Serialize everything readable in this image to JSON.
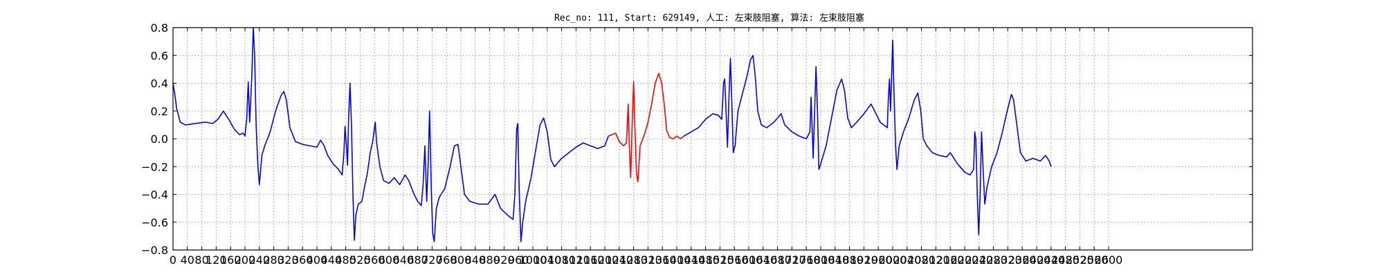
{
  "chart_data": {
    "type": "line",
    "title": "Rec_no: 111, Start: 629149, 人工: 左束肢阻塞, 算法: 左束肢阻塞",
    "xlabel": "",
    "ylabel": "",
    "xlim": [
      0,
      3000
    ],
    "ylim": [
      -0.8,
      0.8
    ],
    "grid": true,
    "legend": "none",
    "x_ticks": [
      0,
      40,
      80,
      120,
      160,
      200,
      240,
      280,
      320,
      360,
      400,
      440,
      480,
      520,
      560,
      600,
      640,
      680,
      720,
      760,
      800,
      840,
      880,
      920,
      960,
      1000,
      1040,
      1080,
      1120,
      1160,
      1200,
      1240,
      1280,
      1320,
      1360,
      1400,
      1440,
      1480,
      1520,
      1560,
      1600,
      1640,
      1680,
      1720,
      1760,
      1800,
      1840,
      1880,
      1920,
      1960,
      2000,
      2040,
      2080,
      2120,
      2160,
      2200,
      2240,
      2280,
      2320,
      2360,
      2400,
      2440,
      2480,
      2520,
      2560,
      2600
    ],
    "y_ticks": [
      -0.8,
      -0.6,
      -0.4,
      -0.2,
      0.0,
      0.2,
      0.4,
      0.6,
      0.8
    ],
    "y_tick_labels": [
      "−0.8",
      "−0.6",
      "−0.4",
      "−0.2",
      "0.0",
      "0.2",
      "0.4",
      "0.6",
      "0.8"
    ],
    "colors": {
      "signal": "#0000ff",
      "highlight": "#ff0000",
      "grid": "#9a9a9a"
    },
    "highlight_range": [
      1210,
      1420
    ],
    "series": [
      {
        "color": "#0000ff",
        "points": [
          [
            0,
            0.4
          ],
          [
            5,
            0.32
          ],
          [
            10,
            0.22
          ],
          [
            20,
            0.12
          ],
          [
            35,
            0.1
          ],
          [
            60,
            0.11
          ],
          [
            90,
            0.12
          ],
          [
            110,
            0.11
          ],
          [
            125,
            0.14
          ],
          [
            140,
            0.2
          ],
          [
            155,
            0.14
          ],
          [
            170,
            0.07
          ],
          [
            185,
            0.03
          ],
          [
            195,
            0.04
          ],
          [
            200,
            0.02
          ],
          [
            205,
            0.15
          ],
          [
            209,
            0.41
          ],
          [
            213,
            0.12
          ],
          [
            219,
            0.45
          ],
          [
            223,
            0.8
          ],
          [
            227,
            0.6
          ],
          [
            231,
            0.1
          ],
          [
            236,
            -0.2
          ],
          [
            240,
            -0.33
          ],
          [
            247,
            -0.12
          ],
          [
            255,
            -0.05
          ],
          [
            270,
            0.05
          ],
          [
            285,
            0.2
          ],
          [
            300,
            0.31
          ],
          [
            308,
            0.34
          ],
          [
            315,
            0.28
          ],
          [
            325,
            0.08
          ],
          [
            340,
            -0.02
          ],
          [
            360,
            -0.04
          ],
          [
            380,
            -0.05
          ],
          [
            400,
            -0.06
          ],
          [
            410,
            -0.01
          ],
          [
            420,
            -0.05
          ],
          [
            430,
            -0.12
          ],
          [
            445,
            -0.18
          ],
          [
            460,
            -0.22
          ],
          [
            470,
            -0.26
          ],
          [
            475,
            -0.1
          ],
          [
            478,
            0.09
          ],
          [
            482,
            -0.05
          ],
          [
            485,
            -0.19
          ],
          [
            488,
            0.15
          ],
          [
            492,
            0.4
          ],
          [
            496,
            0.1
          ],
          [
            500,
            -0.4
          ],
          [
            504,
            -0.73
          ],
          [
            508,
            -0.55
          ],
          [
            515,
            -0.47
          ],
          [
            525,
            -0.45
          ],
          [
            532,
            -0.35
          ],
          [
            540,
            -0.25
          ],
          [
            548,
            -0.1
          ],
          [
            555,
            -0.02
          ],
          [
            562,
            0.12
          ],
          [
            566,
            -0.03
          ],
          [
            575,
            -0.2
          ],
          [
            585,
            -0.3
          ],
          [
            600,
            -0.32
          ],
          [
            615,
            -0.28
          ],
          [
            630,
            -0.33
          ],
          [
            645,
            -0.26
          ],
          [
            655,
            -0.3
          ],
          [
            670,
            -0.4
          ],
          [
            680,
            -0.45
          ],
          [
            690,
            -0.48
          ],
          [
            695,
            -0.33
          ],
          [
            700,
            -0.05
          ],
          [
            705,
            -0.45
          ],
          [
            709,
            -0.18
          ],
          [
            713,
            0.2
          ],
          [
            718,
            -0.4
          ],
          [
            722,
            -0.68
          ],
          [
            726,
            -0.74
          ],
          [
            732,
            -0.5
          ],
          [
            740,
            -0.42
          ],
          [
            755,
            -0.36
          ],
          [
            770,
            -0.2
          ],
          [
            782,
            -0.05
          ],
          [
            792,
            -0.04
          ],
          [
            800,
            -0.2
          ],
          [
            810,
            -0.4
          ],
          [
            825,
            -0.45
          ],
          [
            850,
            -0.47
          ],
          [
            875,
            -0.47
          ],
          [
            895,
            -0.4
          ],
          [
            910,
            -0.5
          ],
          [
            930,
            -0.55
          ],
          [
            945,
            -0.58
          ],
          [
            950,
            -0.4
          ],
          [
            955,
            0.07
          ],
          [
            958,
            0.11
          ],
          [
            962,
            -0.35
          ],
          [
            967,
            -0.74
          ],
          [
            972,
            -0.6
          ],
          [
            980,
            -0.45
          ],
          [
            995,
            -0.28
          ],
          [
            1010,
            -0.05
          ],
          [
            1020,
            0.1
          ],
          [
            1030,
            0.15
          ],
          [
            1040,
            0.05
          ],
          [
            1050,
            -0.15
          ],
          [
            1060,
            -0.2
          ],
          [
            1080,
            -0.14
          ],
          [
            1100,
            -0.1
          ],
          [
            1120,
            -0.06
          ],
          [
            1140,
            -0.03
          ],
          [
            1160,
            -0.05
          ],
          [
            1180,
            -0.07
          ],
          [
            1200,
            -0.05
          ],
          [
            1210,
            0.02
          ]
        ]
      },
      {
        "color": "#ff0000",
        "points": [
          [
            1210,
            0.02
          ],
          [
            1220,
            0.03
          ],
          [
            1230,
            0.04
          ],
          [
            1240,
            -0.02
          ],
          [
            1252,
            -0.05
          ],
          [
            1260,
            -0.03
          ],
          [
            1265,
            0.25
          ],
          [
            1268,
            -0.05
          ],
          [
            1272,
            -0.28
          ],
          [
            1276,
            0.1
          ],
          [
            1280,
            0.41
          ],
          [
            1284,
            0.05
          ],
          [
            1288,
            -0.25
          ],
          [
            1292,
            -0.31
          ],
          [
            1298,
            -0.05
          ],
          [
            1310,
            0.03
          ],
          [
            1320,
            0.12
          ],
          [
            1330,
            0.25
          ],
          [
            1340,
            0.4
          ],
          [
            1350,
            0.47
          ],
          [
            1358,
            0.4
          ],
          [
            1365,
            0.25
          ],
          [
            1372,
            0.06
          ],
          [
            1380,
            0.01
          ],
          [
            1390,
            0.0
          ],
          [
            1400,
            0.02
          ],
          [
            1410,
            0.0
          ],
          [
            1420,
            0.02
          ]
        ]
      },
      {
        "color": "#0000ff",
        "points": [
          [
            1420,
            0.02
          ],
          [
            1440,
            0.05
          ],
          [
            1460,
            0.08
          ],
          [
            1480,
            0.14
          ],
          [
            1500,
            0.18
          ],
          [
            1515,
            0.17
          ],
          [
            1525,
            0.14
          ],
          [
            1530,
            0.4
          ],
          [
            1533,
            0.43
          ],
          [
            1537,
            0.2
          ],
          [
            1541,
            -0.06
          ],
          [
            1545,
            0.3
          ],
          [
            1549,
            0.58
          ],
          [
            1553,
            0.25
          ],
          [
            1557,
            -0.1
          ],
          [
            1562,
            -0.05
          ],
          [
            1570,
            0.2
          ],
          [
            1580,
            0.3
          ],
          [
            1595,
            0.45
          ],
          [
            1605,
            0.57
          ],
          [
            1612,
            0.6
          ],
          [
            1618,
            0.45
          ],
          [
            1625,
            0.2
          ],
          [
            1635,
            0.1
          ],
          [
            1650,
            0.08
          ],
          [
            1670,
            0.12
          ],
          [
            1690,
            0.18
          ],
          [
            1700,
            0.1
          ],
          [
            1720,
            0.05
          ],
          [
            1740,
            0.02
          ],
          [
            1760,
            0.0
          ],
          [
            1770,
            0.05
          ],
          [
            1773,
            0.3
          ],
          [
            1776,
            0.1
          ],
          [
            1779,
            -0.14
          ],
          [
            1783,
            0.2
          ],
          [
            1787,
            0.52
          ],
          [
            1791,
            0.2
          ],
          [
            1795,
            -0.22
          ],
          [
            1800,
            -0.18
          ],
          [
            1815,
            -0.05
          ],
          [
            1830,
            0.15
          ],
          [
            1845,
            0.35
          ],
          [
            1858,
            0.43
          ],
          [
            1866,
            0.35
          ],
          [
            1875,
            0.15
          ],
          [
            1885,
            0.08
          ],
          [
            1900,
            0.12
          ],
          [
            1920,
            0.18
          ],
          [
            1940,
            0.25
          ],
          [
            1950,
            0.2
          ],
          [
            1965,
            0.12
          ],
          [
            1975,
            0.1
          ],
          [
            1985,
            0.08
          ],
          [
            1988,
            0.3
          ],
          [
            1991,
            0.43
          ],
          [
            1994,
            0.2
          ],
          [
            1997,
            0.45
          ],
          [
            2000,
            0.71
          ],
          [
            2004,
            0.3
          ],
          [
            2008,
            -0.05
          ],
          [
            2012,
            -0.22
          ],
          [
            2018,
            -0.05
          ],
          [
            2030,
            0.05
          ],
          [
            2045,
            0.15
          ],
          [
            2060,
            0.28
          ],
          [
            2070,
            0.33
          ],
          [
            2078,
            0.2
          ],
          [
            2085,
            0.0
          ],
          [
            2095,
            -0.05
          ],
          [
            2110,
            -0.1
          ],
          [
            2130,
            -0.12
          ],
          [
            2150,
            -0.13
          ],
          [
            2160,
            -0.1
          ],
          [
            2180,
            -0.18
          ],
          [
            2200,
            -0.24
          ],
          [
            2215,
            -0.26
          ],
          [
            2225,
            -0.22
          ],
          [
            2228,
            0.05
          ],
          [
            2231,
            0.0
          ],
          [
            2235,
            -0.4
          ],
          [
            2239,
            -0.69
          ],
          [
            2243,
            -0.4
          ],
          [
            2247,
            0.05
          ],
          [
            2251,
            -0.2
          ],
          [
            2256,
            -0.47
          ],
          [
            2262,
            -0.35
          ],
          [
            2275,
            -0.2
          ],
          [
            2290,
            -0.1
          ],
          [
            2305,
            0.05
          ],
          [
            2318,
            0.2
          ],
          [
            2330,
            0.32
          ],
          [
            2336,
            0.28
          ],
          [
            2345,
            0.1
          ],
          [
            2355,
            -0.1
          ],
          [
            2370,
            -0.16
          ],
          [
            2390,
            -0.14
          ],
          [
            2410,
            -0.16
          ],
          [
            2425,
            -0.12
          ],
          [
            2435,
            -0.16
          ],
          [
            2440,
            -0.2
          ]
        ]
      }
    ]
  }
}
